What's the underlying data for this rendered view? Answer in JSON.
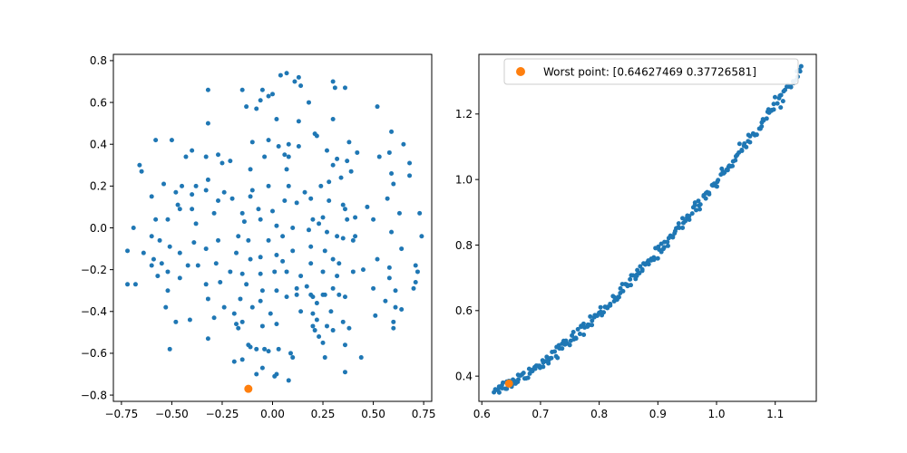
{
  "chart_data": [
    {
      "type": "scatter",
      "xlim": [
        -0.79,
        0.79
      ],
      "ylim": [
        -0.83,
        0.83
      ],
      "xticks": [
        -0.75,
        -0.5,
        -0.25,
        0.0,
        0.25,
        0.5,
        0.75
      ],
      "xtick_labels": [
        "−0.75",
        "−0.50",
        "−0.25",
        "0.00",
        "0.25",
        "0.50",
        "0.75"
      ],
      "yticks": [
        -0.8,
        -0.6,
        -0.4,
        -0.2,
        0.0,
        0.2,
        0.4,
        0.6,
        0.8
      ],
      "ytick_labels": [
        "−0.8",
        "−0.6",
        "−0.4",
        "−0.2",
        "0.0",
        "0.2",
        "0.4",
        "0.6",
        "0.8"
      ],
      "grid": false,
      "series": [
        {
          "color": "#1f77b4",
          "points": [
            [
              0.04,
              0.73
            ],
            [
              0.07,
              0.74
            ],
            [
              0.11,
              0.7
            ],
            [
              0.13,
              0.72
            ],
            [
              0.14,
              0.68
            ],
            [
              0.3,
              0.7
            ],
            [
              0.31,
              0.67
            ],
            [
              0.36,
              0.67
            ],
            [
              -0.32,
              0.66
            ],
            [
              -0.15,
              0.66
            ],
            [
              -0.05,
              0.66
            ],
            [
              -0.02,
              0.63
            ],
            [
              -0.06,
              0.61
            ],
            [
              0.0,
              0.64
            ],
            [
              -0.13,
              0.58
            ],
            [
              -0.08,
              0.57
            ],
            [
              0.18,
              0.6
            ],
            [
              0.52,
              0.58
            ],
            [
              -0.32,
              0.5
            ],
            [
              0.02,
              0.52
            ],
            [
              0.13,
              0.51
            ],
            [
              0.3,
              0.52
            ],
            [
              0.59,
              0.46
            ],
            [
              -0.58,
              0.42
            ],
            [
              -0.5,
              0.42
            ],
            [
              -0.1,
              0.41
            ],
            [
              -0.02,
              0.42
            ],
            [
              0.21,
              0.45
            ],
            [
              0.22,
              0.44
            ],
            [
              0.38,
              0.41
            ],
            [
              -0.4,
              0.37
            ],
            [
              -0.33,
              0.34
            ],
            [
              0.03,
              0.39
            ],
            [
              0.08,
              0.4
            ],
            [
              0.13,
              0.39
            ],
            [
              0.27,
              0.37
            ],
            [
              0.42,
              0.36
            ],
            [
              0.53,
              0.34
            ],
            [
              0.65,
              0.4
            ],
            [
              -0.66,
              0.3
            ],
            [
              -0.65,
              0.27
            ],
            [
              -0.43,
              0.34
            ],
            [
              -0.27,
              0.35
            ],
            [
              -0.21,
              0.32
            ],
            [
              -0.04,
              0.34
            ],
            [
              0.06,
              0.35
            ],
            [
              0.08,
              0.34
            ],
            [
              0.32,
              0.33
            ],
            [
              -0.54,
              0.21
            ],
            [
              -0.45,
              0.2
            ],
            [
              -0.38,
              0.2
            ],
            [
              -0.32,
              0.23
            ],
            [
              -0.25,
              0.31
            ],
            [
              -0.11,
              0.28
            ],
            [
              0.07,
              0.28
            ],
            [
              0.3,
              0.3
            ],
            [
              0.37,
              0.32
            ],
            [
              0.58,
              0.36
            ],
            [
              0.68,
              0.31
            ],
            [
              0.68,
              0.25
            ],
            [
              -0.48,
              0.17
            ],
            [
              -0.4,
              0.16
            ],
            [
              -0.33,
              0.18
            ],
            [
              -0.24,
              0.17
            ],
            [
              -0.1,
              0.18
            ],
            [
              -0.02,
              0.2
            ],
            [
              0.08,
              0.2
            ],
            [
              0.16,
              0.17
            ],
            [
              0.24,
              0.2
            ],
            [
              0.28,
              0.22
            ],
            [
              0.34,
              0.24
            ],
            [
              0.39,
              0.27
            ],
            [
              0.59,
              0.26
            ],
            [
              0.6,
              0.21
            ],
            [
              -0.6,
              0.15
            ],
            [
              -0.47,
              0.11
            ],
            [
              -0.4,
              0.09
            ],
            [
              -0.27,
              0.13
            ],
            [
              -0.2,
              0.14
            ],
            [
              -0.11,
              0.15
            ],
            [
              0.06,
              0.13
            ],
            [
              0.12,
              0.12
            ],
            [
              0.19,
              0.14
            ],
            [
              0.28,
              0.13
            ],
            [
              0.35,
              0.11
            ],
            [
              0.47,
              0.1
            ],
            [
              0.57,
              0.14
            ],
            [
              -0.52,
              0.04
            ],
            [
              -0.46,
              0.09
            ],
            [
              -0.58,
              0.04
            ],
            [
              -0.29,
              0.07
            ],
            [
              -0.15,
              0.07
            ],
            [
              -0.07,
              0.09
            ],
            [
              0.0,
              0.08
            ],
            [
              0.2,
              0.04
            ],
            [
              0.25,
              0.05
            ],
            [
              0.36,
              0.09
            ],
            [
              0.41,
              0.05
            ],
            [
              0.5,
              0.04
            ],
            [
              0.63,
              0.07
            ],
            [
              -0.69,
              0.0
            ],
            [
              -0.6,
              -0.04
            ],
            [
              -0.38,
              0.02
            ],
            [
              -0.14,
              0.03
            ],
            [
              -0.06,
              0.04
            ],
            [
              0.02,
              0.01
            ],
            [
              0.1,
              0.0
            ],
            [
              0.23,
              0.02
            ],
            [
              0.37,
              0.04
            ],
            [
              0.73,
              0.07
            ],
            [
              -0.56,
              -0.06
            ],
            [
              -0.51,
              -0.09
            ],
            [
              -0.39,
              -0.07
            ],
            [
              -0.27,
              -0.06
            ],
            [
              -0.17,
              -0.04
            ],
            [
              -0.12,
              -0.06
            ],
            [
              -0.02,
              -0.06
            ],
            [
              0.05,
              -0.04
            ],
            [
              0.18,
              -0.01
            ],
            [
              0.27,
              -0.02
            ],
            [
              0.32,
              -0.04
            ],
            [
              0.41,
              -0.04
            ],
            [
              0.59,
              -0.02
            ],
            [
              0.74,
              -0.04
            ],
            [
              -0.72,
              -0.11
            ],
            [
              -0.64,
              -0.12
            ],
            [
              -0.59,
              -0.15
            ],
            [
              -0.46,
              -0.12
            ],
            [
              -0.33,
              -0.1
            ],
            [
              -0.18,
              -0.12
            ],
            [
              -0.11,
              -0.15
            ],
            [
              0.02,
              -0.13
            ],
            [
              0.1,
              -0.11
            ],
            [
              0.19,
              -0.09
            ],
            [
              0.26,
              -0.11
            ],
            [
              0.35,
              -0.05
            ],
            [
              0.4,
              -0.06
            ],
            [
              0.64,
              -0.1
            ],
            [
              -0.6,
              -0.18
            ],
            [
              -0.55,
              -0.17
            ],
            [
              -0.52,
              -0.21
            ],
            [
              -0.42,
              -0.18
            ],
            [
              -0.37,
              -0.18
            ],
            [
              -0.28,
              -0.17
            ],
            [
              -0.06,
              -0.14
            ],
            [
              0.05,
              -0.16
            ],
            [
              0.19,
              -0.17
            ],
            [
              0.3,
              -0.15
            ],
            [
              0.33,
              -0.17
            ],
            [
              0.45,
              -0.2
            ],
            [
              0.52,
              -0.15
            ],
            [
              0.58,
              -0.19
            ],
            [
              0.71,
              -0.18
            ],
            [
              -0.57,
              -0.23
            ],
            [
              -0.46,
              -0.24
            ],
            [
              -0.21,
              -0.21
            ],
            [
              -0.15,
              -0.22
            ],
            [
              -0.06,
              -0.22
            ],
            [
              0.01,
              -0.21
            ],
            [
              0.07,
              -0.21
            ],
            [
              0.14,
              -0.23
            ],
            [
              0.25,
              -0.21
            ],
            [
              0.32,
              -0.23
            ],
            [
              0.4,
              -0.21
            ],
            [
              0.58,
              -0.24
            ],
            [
              0.72,
              -0.21
            ],
            [
              -0.72,
              -0.27
            ],
            [
              -0.68,
              -0.27
            ],
            [
              -0.52,
              -0.3
            ],
            [
              -0.33,
              -0.27
            ],
            [
              -0.26,
              -0.26
            ],
            [
              -0.13,
              -0.27
            ],
            [
              -0.05,
              -0.3
            ],
            [
              0.02,
              -0.3
            ],
            [
              0.12,
              -0.29
            ],
            [
              0.17,
              -0.28
            ],
            [
              0.19,
              -0.32
            ],
            [
              0.25,
              -0.32
            ],
            [
              0.3,
              -0.29
            ],
            [
              0.5,
              -0.29
            ],
            [
              0.61,
              -0.3
            ],
            [
              0.71,
              -0.26
            ],
            [
              0.7,
              -0.29
            ],
            [
              -0.53,
              -0.38
            ],
            [
              -0.32,
              -0.34
            ],
            [
              -0.24,
              -0.38
            ],
            [
              -0.16,
              -0.34
            ],
            [
              -0.06,
              -0.35
            ],
            [
              0.07,
              -0.33
            ],
            [
              0.12,
              -0.32
            ],
            [
              0.2,
              -0.33
            ],
            [
              0.22,
              -0.36
            ],
            [
              0.26,
              -0.32
            ],
            [
              0.33,
              -0.32
            ],
            [
              0.36,
              -0.33
            ],
            [
              0.56,
              -0.35
            ],
            [
              0.61,
              -0.38
            ],
            [
              0.64,
              -0.39
            ],
            [
              -0.48,
              -0.45
            ],
            [
              -0.41,
              -0.44
            ],
            [
              -0.29,
              -0.43
            ],
            [
              -0.19,
              -0.41
            ],
            [
              -0.15,
              -0.45
            ],
            [
              -0.1,
              -0.38
            ],
            [
              -0.01,
              -0.41
            ],
            [
              0.14,
              -0.4
            ],
            [
              0.2,
              -0.41
            ],
            [
              0.22,
              -0.44
            ],
            [
              0.29,
              -0.4
            ],
            [
              0.35,
              -0.45
            ],
            [
              0.51,
              -0.42
            ],
            [
              0.6,
              -0.45
            ],
            [
              -0.18,
              -0.46
            ],
            [
              -0.17,
              -0.48
            ],
            [
              -0.05,
              -0.47
            ],
            [
              0.02,
              -0.46
            ],
            [
              0.2,
              -0.47
            ],
            [
              0.21,
              -0.49
            ],
            [
              0.27,
              -0.47
            ],
            [
              0.3,
              -0.49
            ],
            [
              0.38,
              -0.48
            ],
            [
              0.6,
              -0.48
            ],
            [
              -0.32,
              -0.53
            ],
            [
              -0.12,
              -0.56
            ],
            [
              -0.11,
              -0.57
            ],
            [
              -0.08,
              -0.58
            ],
            [
              -0.04,
              -0.58
            ],
            [
              -0.02,
              -0.59
            ],
            [
              0.03,
              -0.58
            ],
            [
              0.09,
              -0.6
            ],
            [
              0.23,
              -0.52
            ],
            [
              0.25,
              -0.55
            ],
            [
              0.36,
              -0.56
            ],
            [
              -0.51,
              -0.58
            ],
            [
              -0.15,
              -0.63
            ],
            [
              -0.19,
              -0.64
            ],
            [
              0.1,
              -0.62
            ],
            [
              0.26,
              -0.62
            ],
            [
              0.36,
              -0.69
            ],
            [
              0.44,
              -0.62
            ],
            [
              -0.05,
              -0.67
            ],
            [
              0.01,
              -0.71
            ],
            [
              0.02,
              -0.7
            ],
            [
              0.08,
              -0.73
            ],
            [
              -0.08,
              -0.7
            ]
          ]
        },
        {
          "color": "#ff7f0e",
          "points": [
            [
              -0.12,
              -0.77
            ]
          ]
        }
      ]
    },
    {
      "type": "scatter",
      "xlim": [
        0.595,
        1.17
      ],
      "ylim": [
        0.323,
        1.382
      ],
      "xticks": [
        0.6,
        0.7,
        0.8,
        0.9,
        1.0,
        1.1
      ],
      "xtick_labels": [
        "0.6",
        "0.7",
        "0.8",
        "0.9",
        "1.0",
        "1.1"
      ],
      "yticks": [
        0.4,
        0.6,
        0.8,
        1.0,
        1.2
      ],
      "ytick_labels": [
        "0.4",
        "0.6",
        "0.8",
        "1.0",
        "1.2"
      ],
      "grid": false,
      "legend_position": "upper-right",
      "legend": [
        {
          "label": "Worst point: [0.64627469 0.37726581]",
          "color": "#ff7f0e"
        }
      ],
      "series": [
        {
          "color": "#1f77b4",
          "curve": {
            "x_start": 0.62,
            "x_end": 1.145,
            "count": 250,
            "y_at_x_start": 0.36,
            "y_at_x_end": 1.34,
            "exponent": 1.35,
            "jitter": 0.018
          }
        },
        {
          "color": "#ff7f0e",
          "points": [
            [
              0.64627469,
              0.37726581
            ]
          ]
        }
      ]
    }
  ]
}
